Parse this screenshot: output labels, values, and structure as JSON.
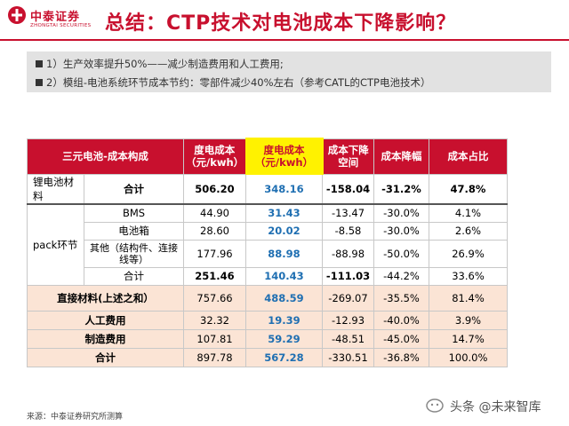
{
  "logo": {
    "name_cn": "中泰证券",
    "name_en": "ZHONGTAI SECURITIES"
  },
  "title": "总结：CTP技术对电池成本下降影响？",
  "summary": [
    "1）生产效率提升50%——减少制造费用和人工费用;",
    "2）模组-电池系统环节成本节约：零部件减少40%左右（参考CATL的CTP电池技术）"
  ],
  "table": {
    "headers": [
      "三元电池-成本构成",
      "度电成本（元/kwh）",
      "度电成本（元/kwh）",
      "成本下降空间",
      "成本降幅",
      "成本占比"
    ],
    "group_labels": {
      "cell_material": "锂电池材料",
      "pack": "pack环节"
    },
    "rows": [
      [
        "合计",
        "506.20",
        "348.16",
        "-158.04",
        "-31.2%",
        "47.8%"
      ],
      [
        "BMS",
        "44.90",
        "31.43",
        "-13.47",
        "-30.0%",
        "4.1%"
      ],
      [
        "电池箱",
        "28.60",
        "20.02",
        "-8.58",
        "-30.0%",
        "2.6%"
      ],
      [
        "其他（结构件、连接线等）",
        "177.96",
        "88.98",
        "-88.98",
        "-50.0%",
        "26.9%"
      ],
      [
        "合计",
        "251.46",
        "140.43",
        "-111.03",
        "-44.2%",
        "33.6%"
      ],
      [
        "直接材料(上述之和）",
        "757.66",
        "488.59",
        "-269.07",
        "-35.5%",
        "81.4%"
      ],
      [
        "人工费用",
        "32.32",
        "19.39",
        "-12.93",
        "-40.0%",
        "3.9%"
      ],
      [
        "制造费用",
        "107.81",
        "59.29",
        "-48.51",
        "-45.0%",
        "14.7%"
      ],
      [
        "合计",
        "897.78",
        "567.28",
        "-330.51",
        "-36.8%",
        "100.0%"
      ]
    ]
  },
  "source": "来源：中泰证券研究所测算",
  "watermark": "头条 @未来智库",
  "colors": {
    "brand_red": "#c8102e",
    "highlight_yellow": "#fff200",
    "value_blue": "#1f6fb2",
    "summary_row_bg": "#fbe4d5"
  }
}
